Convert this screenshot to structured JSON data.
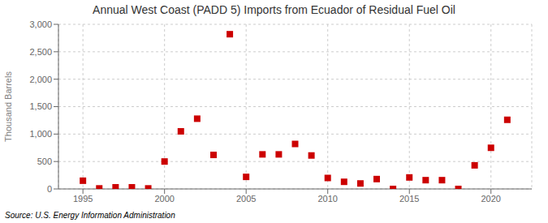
{
  "chart_data": {
    "type": "scatter",
    "title": "Annual West Coast (PADD 5) Imports from Ecuador of Residual Fuel Oil",
    "y_label": "Thousand Barrels",
    "annotations": [
      "Source: U.S. Energy Information Administration"
    ],
    "x": [
      1995,
      1996,
      1997,
      1998,
      1999,
      2000,
      2001,
      2002,
      2003,
      2004,
      2005,
      2006,
      2007,
      2008,
      2009,
      2010,
      2011,
      2012,
      2013,
      2014,
      2015,
      2016,
      2017,
      2018,
      2019,
      2020,
      2021
    ],
    "values": [
      150,
      10,
      30,
      30,
      10,
      500,
      1050,
      1280,
      620,
      2820,
      220,
      630,
      630,
      820,
      610,
      200,
      130,
      100,
      180,
      0,
      210,
      160,
      160,
      0,
      430,
      750,
      1260
    ],
    "color": "#cc0000",
    "marker": "square",
    "xlim": [
      1993.5,
      2022.5
    ],
    "xticks": [
      1995,
      2000,
      2005,
      2010,
      2015,
      2020
    ],
    "ylim": [
      0,
      3000
    ],
    "yticks": [
      0,
      500,
      {
        "value": 1000,
        "label": "1,000"
      },
      {
        "value": 1500,
        "label": "1,500"
      },
      {
        "value": 2000,
        "label": "2,000"
      },
      {
        "value": 2500,
        "label": "2,500"
      },
      {
        "value": 3000,
        "label": "3,000"
      }
    ],
    "grid": true
  }
}
